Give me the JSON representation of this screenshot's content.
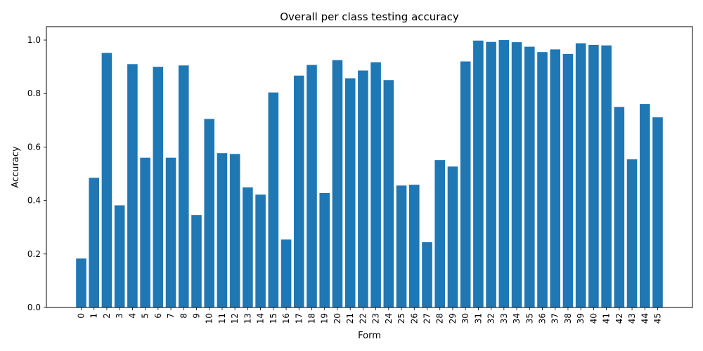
{
  "colors": {
    "bar": "#1f77b4",
    "axis": "#000000",
    "background": "#ffffff"
  },
  "chart_data": {
    "type": "bar",
    "title": "Overall per class testing accuracy",
    "xlabel": "Form",
    "ylabel": "Accuracy",
    "ylim": [
      0,
      1.05
    ],
    "grid": false,
    "yticks": [
      0.0,
      0.2,
      0.4,
      0.6,
      0.8,
      1.0
    ],
    "ytick_labels": [
      "0.0",
      "0.2",
      "0.4",
      "0.6",
      "0.8",
      "1.0"
    ],
    "categories": [
      "0",
      "1",
      "2",
      "3",
      "4",
      "5",
      "6",
      "7",
      "8",
      "9",
      "10",
      "11",
      "12",
      "13",
      "14",
      "15",
      "16",
      "17",
      "18",
      "19",
      "20",
      "21",
      "22",
      "23",
      "24",
      "25",
      "26",
      "27",
      "28",
      "29",
      "30",
      "31",
      "32",
      "33",
      "34",
      "35",
      "36",
      "37",
      "38",
      "39",
      "40",
      "41",
      "42",
      "43",
      "44",
      "45"
    ],
    "values": [
      0.183,
      0.485,
      0.952,
      0.382,
      0.91,
      0.56,
      0.9,
      0.56,
      0.905,
      0.346,
      0.705,
      0.577,
      0.574,
      0.449,
      0.422,
      0.804,
      0.254,
      0.867,
      0.907,
      0.428,
      0.925,
      0.857,
      0.886,
      0.917,
      0.85,
      0.456,
      0.459,
      0.244,
      0.551,
      0.527,
      0.92,
      0.998,
      0.993,
      1.0,
      0.992,
      0.975,
      0.955,
      0.965,
      0.948,
      0.988,
      0.982,
      0.98,
      0.75,
      0.554,
      0.761,
      0.711
    ]
  }
}
